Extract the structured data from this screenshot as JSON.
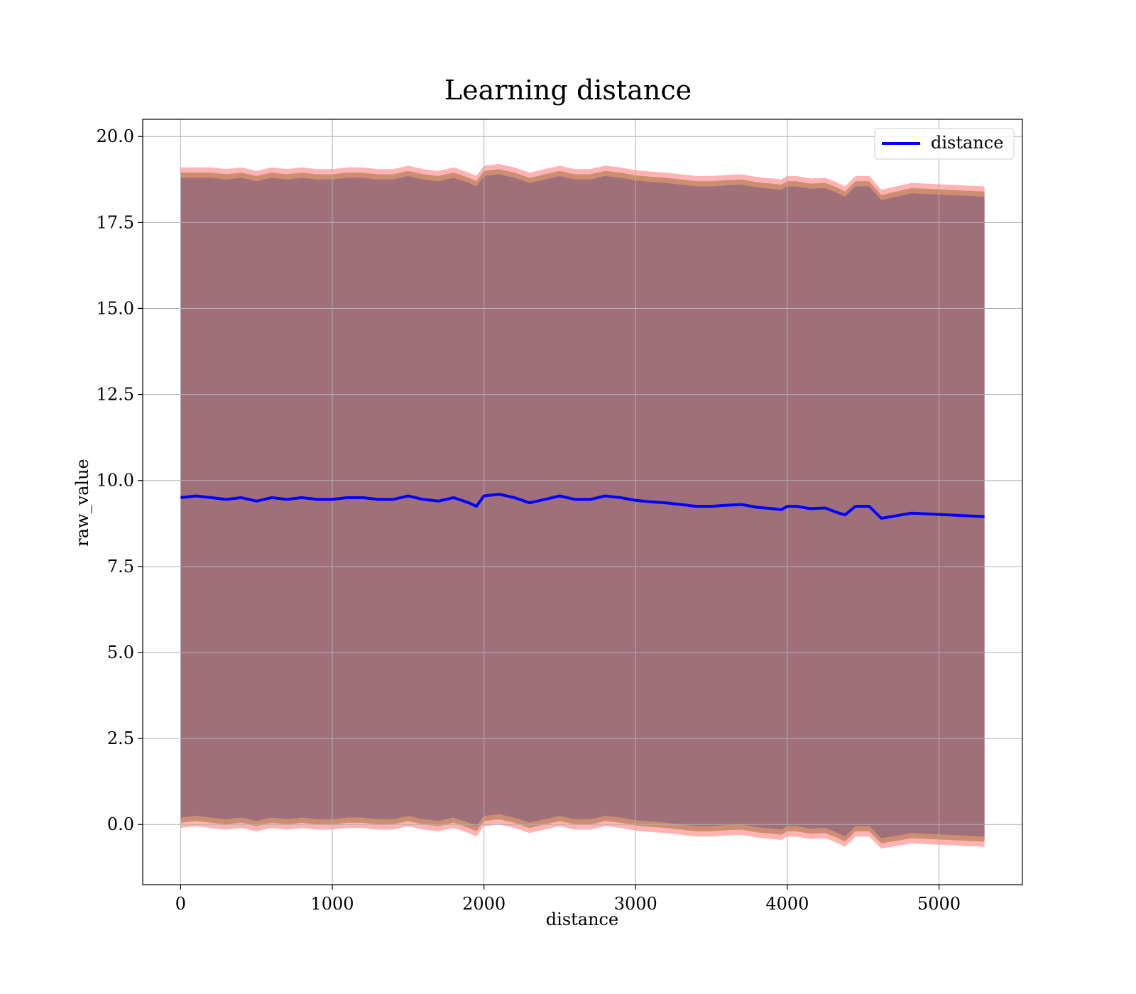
{
  "chart_data": {
    "type": "line",
    "title": "Learning distance",
    "xlabel": "distance",
    "ylabel": "raw_value",
    "xlim": [
      -250,
      5550
    ],
    "ylim": [
      -1.75,
      20.5
    ],
    "xticks": [
      0,
      1000,
      2000,
      3000,
      4000,
      5000
    ],
    "xtick_labels": [
      "0",
      "1000",
      "2000",
      "3000",
      "4000",
      "5000"
    ],
    "yticks": [
      0.0,
      2.5,
      5.0,
      7.5,
      10.0,
      12.5,
      15.0,
      17.5,
      20.0
    ],
    "ytick_labels": [
      "0.0",
      "2.5",
      "5.0",
      "7.5",
      "10.0",
      "12.5",
      "15.0",
      "17.5",
      "20.0"
    ],
    "grid": true,
    "legend": {
      "position": "top-right",
      "entries": [
        "distance"
      ]
    },
    "colors": {
      "line": "#0000ff",
      "band_outer": "#ff9a9a",
      "band_middle": "#c0835f",
      "band_inner": "#a0707a",
      "grid": "#b0b0b0"
    },
    "series": [
      {
        "name": "distance",
        "x": [
          0,
          100,
          200,
          300,
          400,
          500,
          600,
          700,
          800,
          900,
          1000,
          1100,
          1200,
          1300,
          1400,
          1500,
          1600,
          1700,
          1800,
          1900,
          1950,
          2000,
          2100,
          2200,
          2300,
          2400,
          2500,
          2600,
          2700,
          2800,
          2900,
          3000,
          3100,
          3200,
          3300,
          3400,
          3500,
          3600,
          3700,
          3800,
          3900,
          3960,
          4000,
          4060,
          4150,
          4250,
          4320,
          4380,
          4450,
          4540,
          4620,
          4820,
          5300
        ],
        "y": [
          9.5,
          9.55,
          9.5,
          9.45,
          9.5,
          9.4,
          9.5,
          9.45,
          9.5,
          9.45,
          9.45,
          9.5,
          9.5,
          9.45,
          9.45,
          9.55,
          9.45,
          9.4,
          9.5,
          9.35,
          9.25,
          9.55,
          9.6,
          9.5,
          9.35,
          9.45,
          9.55,
          9.45,
          9.45,
          9.55,
          9.5,
          9.42,
          9.38,
          9.35,
          9.3,
          9.25,
          9.25,
          9.28,
          9.3,
          9.22,
          9.18,
          9.15,
          9.25,
          9.25,
          9.18,
          9.2,
          9.08,
          9.0,
          9.25,
          9.25,
          8.9,
          9.05,
          8.95
        ]
      }
    ],
    "bands": [
      {
        "upper": [
          19.1,
          19.1,
          19.1,
          19.05,
          19.1,
          19.0,
          19.1,
          19.05,
          19.1,
          19.05,
          19.05,
          19.1,
          19.1,
          19.05,
          19.05,
          19.15,
          19.05,
          19.0,
          19.1,
          18.95,
          18.85,
          19.15,
          19.2,
          19.1,
          18.95,
          19.05,
          19.15,
          19.05,
          19.05,
          19.15,
          19.1,
          19.02,
          18.98,
          18.95,
          18.9,
          18.85,
          18.85,
          18.88,
          18.9,
          18.82,
          18.78,
          18.75,
          18.85,
          18.85,
          18.78,
          18.8,
          18.68,
          18.55,
          18.85,
          18.85,
          18.45,
          18.65,
          18.55
        ],
        "lower": [
          -0.1,
          -0.05,
          -0.1,
          -0.15,
          -0.1,
          -0.2,
          -0.1,
          -0.15,
          -0.1,
          -0.15,
          -0.15,
          -0.1,
          -0.1,
          -0.15,
          -0.15,
          -0.05,
          -0.15,
          -0.2,
          -0.1,
          -0.25,
          -0.35,
          -0.05,
          0.0,
          -0.1,
          -0.25,
          -0.15,
          -0.05,
          -0.15,
          -0.15,
          -0.05,
          -0.1,
          -0.18,
          -0.22,
          -0.25,
          -0.3,
          -0.35,
          -0.35,
          -0.32,
          -0.3,
          -0.38,
          -0.42,
          -0.45,
          -0.35,
          -0.35,
          -0.42,
          -0.4,
          -0.52,
          -0.65,
          -0.35,
          -0.35,
          -0.7,
          -0.55,
          -0.65
        ]
      },
      {
        "upper": [
          18.95,
          18.95,
          18.95,
          18.9,
          18.95,
          18.85,
          18.95,
          18.9,
          18.95,
          18.9,
          18.9,
          18.95,
          18.95,
          18.9,
          18.9,
          19.0,
          18.9,
          18.85,
          18.95,
          18.8,
          18.7,
          19.0,
          19.05,
          18.95,
          18.8,
          18.9,
          19.0,
          18.9,
          18.9,
          19.0,
          18.95,
          18.87,
          18.83,
          18.8,
          18.75,
          18.7,
          18.7,
          18.73,
          18.75,
          18.67,
          18.63,
          18.6,
          18.7,
          18.7,
          18.63,
          18.65,
          18.53,
          18.4,
          18.7,
          18.7,
          18.3,
          18.5,
          18.4
        ],
        "lower": [
          0.05,
          0.1,
          0.05,
          0.0,
          0.05,
          -0.05,
          0.05,
          0.0,
          0.05,
          0.0,
          0.0,
          0.05,
          0.05,
          0.0,
          0.0,
          0.1,
          0.0,
          -0.05,
          0.05,
          -0.1,
          -0.2,
          0.1,
          0.15,
          0.05,
          -0.1,
          0.0,
          0.1,
          0.0,
          0.0,
          0.1,
          0.05,
          -0.03,
          -0.07,
          -0.1,
          -0.15,
          -0.2,
          -0.2,
          -0.17,
          -0.15,
          -0.23,
          -0.27,
          -0.3,
          -0.2,
          -0.2,
          -0.27,
          -0.25,
          -0.37,
          -0.5,
          -0.2,
          -0.2,
          -0.55,
          -0.4,
          -0.5
        ]
      },
      {
        "upper": [
          18.8,
          18.8,
          18.8,
          18.75,
          18.8,
          18.7,
          18.8,
          18.75,
          18.8,
          18.75,
          18.75,
          18.8,
          18.8,
          18.75,
          18.75,
          18.85,
          18.75,
          18.7,
          18.8,
          18.65,
          18.55,
          18.85,
          18.9,
          18.8,
          18.65,
          18.75,
          18.85,
          18.75,
          18.75,
          18.85,
          18.8,
          18.72,
          18.68,
          18.65,
          18.6,
          18.55,
          18.55,
          18.58,
          18.6,
          18.52,
          18.48,
          18.45,
          18.55,
          18.55,
          18.48,
          18.5,
          18.38,
          18.25,
          18.55,
          18.55,
          18.15,
          18.35,
          18.25
        ],
        "lower": [
          0.2,
          0.25,
          0.2,
          0.15,
          0.2,
          0.1,
          0.2,
          0.15,
          0.2,
          0.15,
          0.15,
          0.2,
          0.2,
          0.15,
          0.15,
          0.25,
          0.15,
          0.1,
          0.2,
          0.05,
          -0.05,
          0.25,
          0.3,
          0.2,
          0.05,
          0.15,
          0.25,
          0.15,
          0.15,
          0.25,
          0.2,
          0.12,
          0.08,
          0.05,
          0.0,
          -0.05,
          -0.05,
          -0.02,
          0.0,
          -0.08,
          -0.12,
          -0.15,
          -0.05,
          -0.05,
          -0.12,
          -0.1,
          -0.22,
          -0.35,
          -0.05,
          -0.05,
          -0.4,
          -0.25,
          -0.35
        ]
      }
    ]
  }
}
